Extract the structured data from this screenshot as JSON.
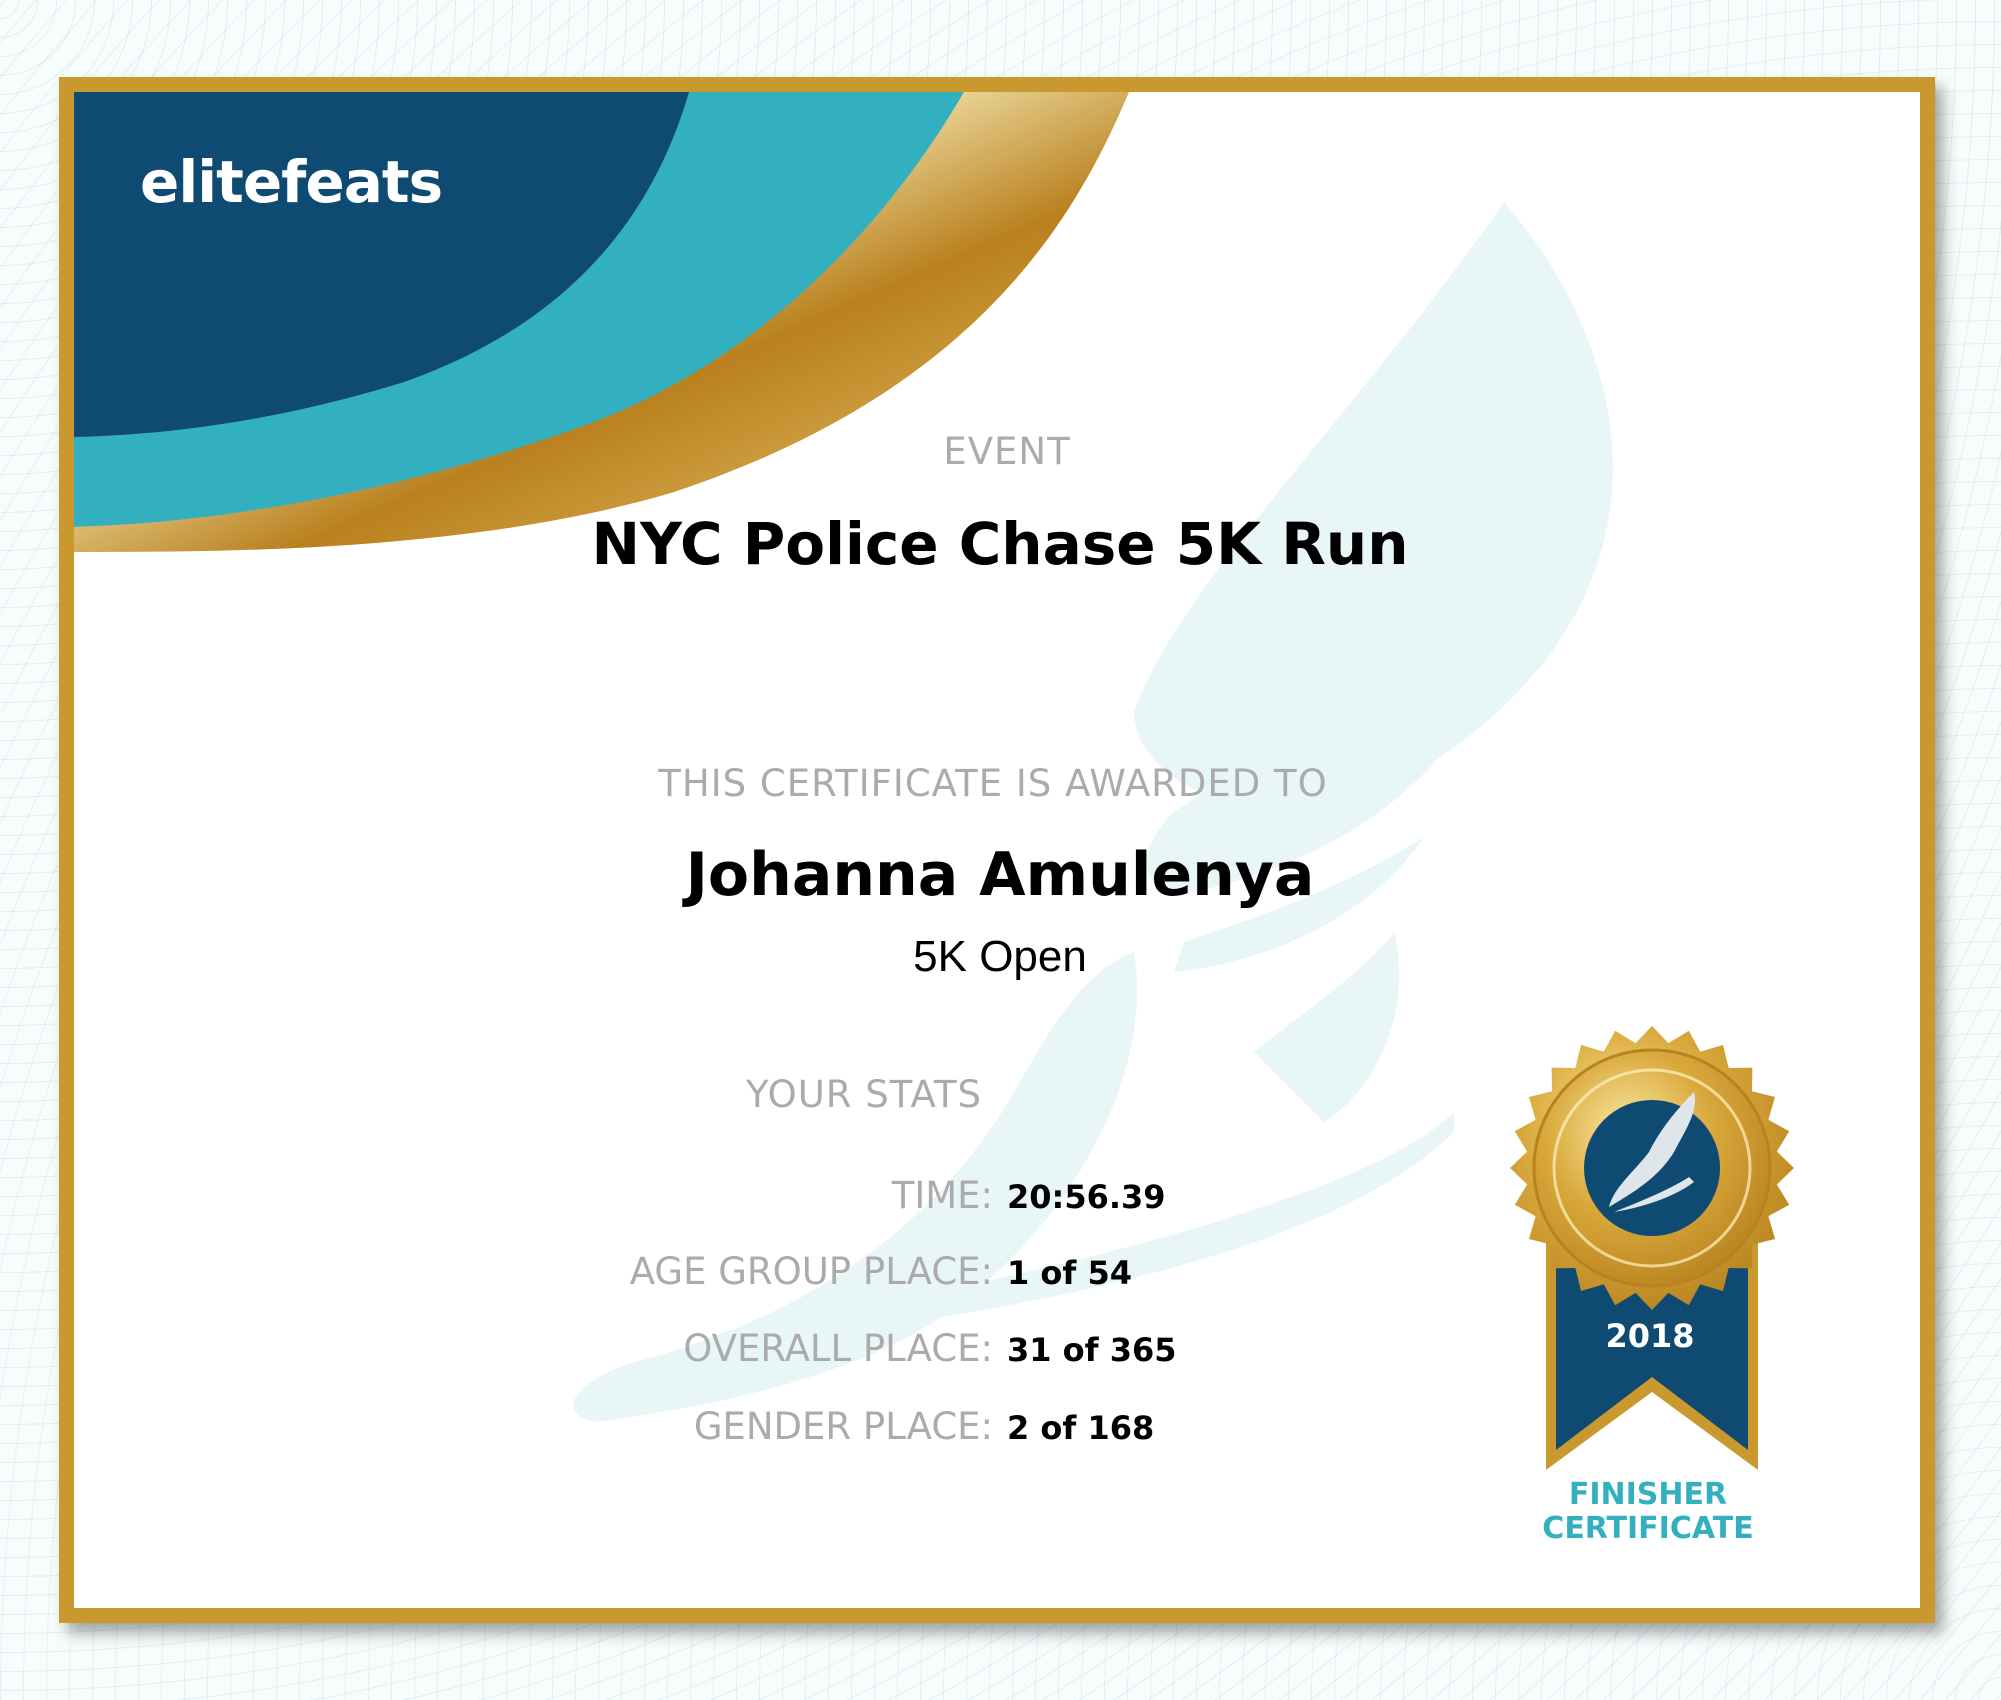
{
  "brand": {
    "logo_text": "elitefeats",
    "colors": {
      "navy": "#0f4a73",
      "teal": "#33b0bf",
      "gold": "#c9992f"
    }
  },
  "event": {
    "label": "EVENT",
    "name": "NYC Police Chase 5K Run"
  },
  "award": {
    "label": "THIS CERTIFICATE IS AWARDED TO",
    "name": "Johanna Amulenya",
    "division": "5K Open"
  },
  "stats": {
    "label": "YOUR STATS",
    "rows": [
      {
        "label": "TIME:",
        "value": "20:56.39"
      },
      {
        "label": "AGE GROUP PLACE:",
        "value": "1 of 54"
      },
      {
        "label": "OVERALL PLACE:",
        "value": "31 of 365"
      },
      {
        "label": "GENDER PLACE:",
        "value": "2 of 168"
      }
    ]
  },
  "badge": {
    "year": "2018",
    "line1": "FINISHER",
    "line2": "CERTIFICATE",
    "icon": "winged-foot-icon"
  }
}
